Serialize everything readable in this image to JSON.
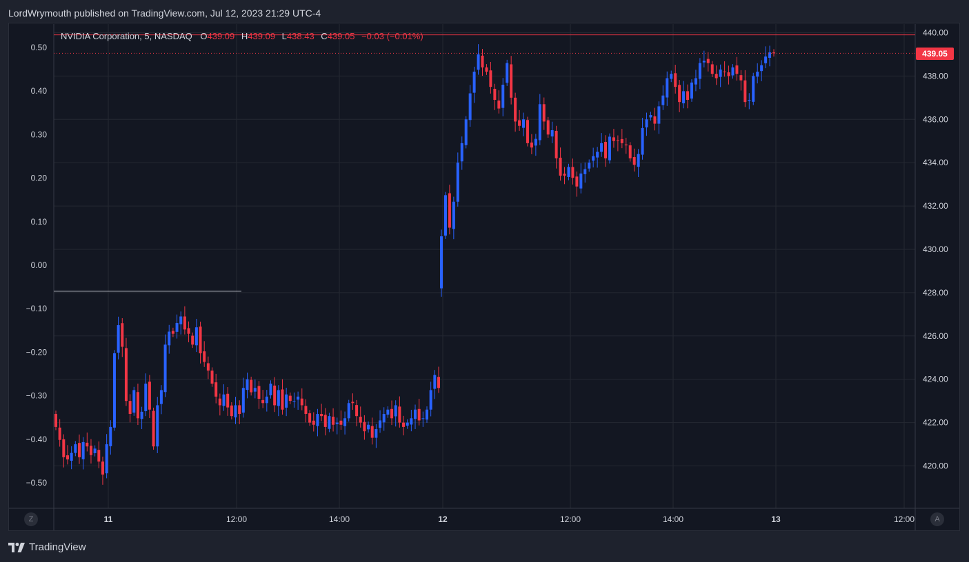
{
  "header": {
    "published": "LordWrymouth published on TradingView.com, Jul 12, 2023 21:29 UTC-4"
  },
  "legend": {
    "symbol": "NVIDIA Corporation, 5, NASDAQ",
    "o_label": "O",
    "o": "439.09",
    "h_label": "H",
    "h": "439.09",
    "l_label": "L",
    "l": "438.43",
    "c_label": "C",
    "c": "439.05",
    "change": "−0.03 (−0.01%)"
  },
  "buttons": {
    "left_scale": "Z",
    "right_scale": "A"
  },
  "footer": {
    "brand": "TradingView"
  },
  "colors": {
    "up": "#2962ff",
    "down": "#f23645",
    "grid": "#242832",
    "text": "#d1d4dc"
  },
  "chart_data": {
    "type": "candlestick",
    "last_price_label": "439.05",
    "right_axis": {
      "ticks": [
        "440.00",
        "438.00",
        "436.00",
        "434.00",
        "432.00",
        "430.00",
        "428.00",
        "426.00",
        "424.00",
        "422.00",
        "420.00"
      ],
      "range": [
        418.5,
        440.0
      ]
    },
    "left_axis": {
      "ticks": [
        "0.50",
        "0.40",
        "0.30",
        "0.20",
        "0.10",
        "0.00",
        "−0.10",
        "−0.20",
        "−0.30",
        "−0.40",
        "−0.50"
      ]
    },
    "x_ticks": [
      {
        "label": "11",
        "bold": true
      },
      {
        "label": "12:00",
        "bold": false
      },
      {
        "label": "14:00",
        "bold": false
      },
      {
        "label": "12",
        "bold": true
      },
      {
        "label": "12:00",
        "bold": false
      },
      {
        "label": "14:00",
        "bold": false
      },
      {
        "label": "13",
        "bold": true
      },
      {
        "label": "12:00",
        "bold": false
      }
    ],
    "reference_lines": {
      "top_level": 439.9,
      "left_level": -0.06
    },
    "closes": [
      421.8,
      421.2,
      420.4,
      420.3,
      420.6,
      421.0,
      420.4,
      421.1,
      420.9,
      420.5,
      420.8,
      420.2,
      419.6,
      421.0,
      421.8,
      425.2,
      426.5,
      425.5,
      423.0,
      422.4,
      423.5,
      422.2,
      422.5,
      423.8,
      422.6,
      420.9,
      422.8,
      423.5,
      425.6,
      426.2,
      426.1,
      426.6,
      426.9,
      426.3,
      426.1,
      425.6,
      426.4,
      425.2,
      424.8,
      424.4,
      423.8,
      423.2,
      422.8,
      423.3,
      422.7,
      422.3,
      422.8,
      422.4,
      423.6,
      424.0,
      423.4,
      423.6,
      423.1,
      422.9,
      423.2,
      423.8,
      422.8,
      423.5,
      422.6,
      423.3,
      423.0,
      423.0,
      423.2,
      422.8,
      422.4,
      422.0,
      421.9,
      422.4,
      422.3,
      421.8,
      422.3,
      421.9,
      422.0,
      421.9,
      422.2,
      422.9,
      422.9,
      422.3,
      422.0,
      421.6,
      421.9,
      421.3,
      421.7,
      422.1,
      422.4,
      422.6,
      422.2,
      422.8,
      422.0,
      421.8,
      422.0,
      422.2,
      422.6,
      422.1,
      422.2,
      422.6,
      423.5,
      424.2,
      423.6,
      430.6,
      432.5,
      431.0,
      432.2,
      434.0,
      434.9,
      436.0,
      437.2,
      438.2,
      439.0,
      438.4,
      438.2,
      437.5,
      436.9,
      436.5,
      437.6,
      438.6,
      437.0,
      435.9,
      435.7,
      436.0,
      434.9,
      434.7,
      435.1,
      436.7,
      435.9,
      435.3,
      435.5,
      434.2,
      433.4,
      433.4,
      433.8,
      433.3,
      432.9,
      433.5,
      433.7,
      434.0,
      434.3,
      434.5,
      434.9,
      434.2,
      435.2,
      435.0,
      435.0,
      434.9,
      434.8,
      434.2,
      433.9,
      434.4,
      435.6,
      436.0,
      436.2,
      435.8,
      436.6,
      437.1,
      437.9,
      438.1,
      437.5,
      436.8,
      437.3,
      436.9,
      437.7,
      437.9,
      438.6,
      438.7,
      438.6,
      438.1,
      437.9,
      438.3,
      438.2,
      438.0,
      438.4,
      438.1,
      437.8,
      436.8,
      436.9,
      438.0,
      438.2,
      438.5,
      438.9,
      439.09,
      439.05
    ]
  }
}
